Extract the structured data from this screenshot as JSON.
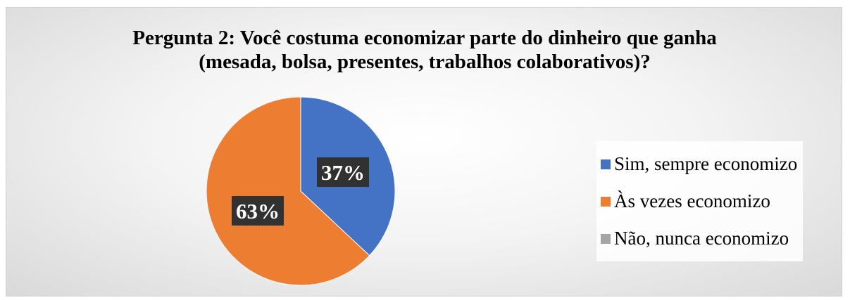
{
  "chart_data": {
    "type": "pie",
    "title": "Pergunta 2:  Você costuma economizar parte do dinheiro que ganha (mesada, bolsa, presentes, trabalhos colaborativos)?",
    "title_lines": [
      "Pergunta 2:  Você costuma economizar parte do dinheiro que ganha",
      "(mesada, bolsa, presentes, trabalhos colaborativos)?"
    ],
    "categories": [
      "Sim, sempre economizo",
      "Às vezes economizo",
      "Não, nunca economizo"
    ],
    "values": [
      37,
      63,
      0
    ],
    "data_labels": [
      "37%",
      "63%",
      ""
    ],
    "colors": [
      "#4472c4",
      "#ed7d31",
      "#a5a5a5"
    ],
    "legend_position": "right",
    "start_angle": "12 o'clock",
    "direction": "clockwise"
  }
}
